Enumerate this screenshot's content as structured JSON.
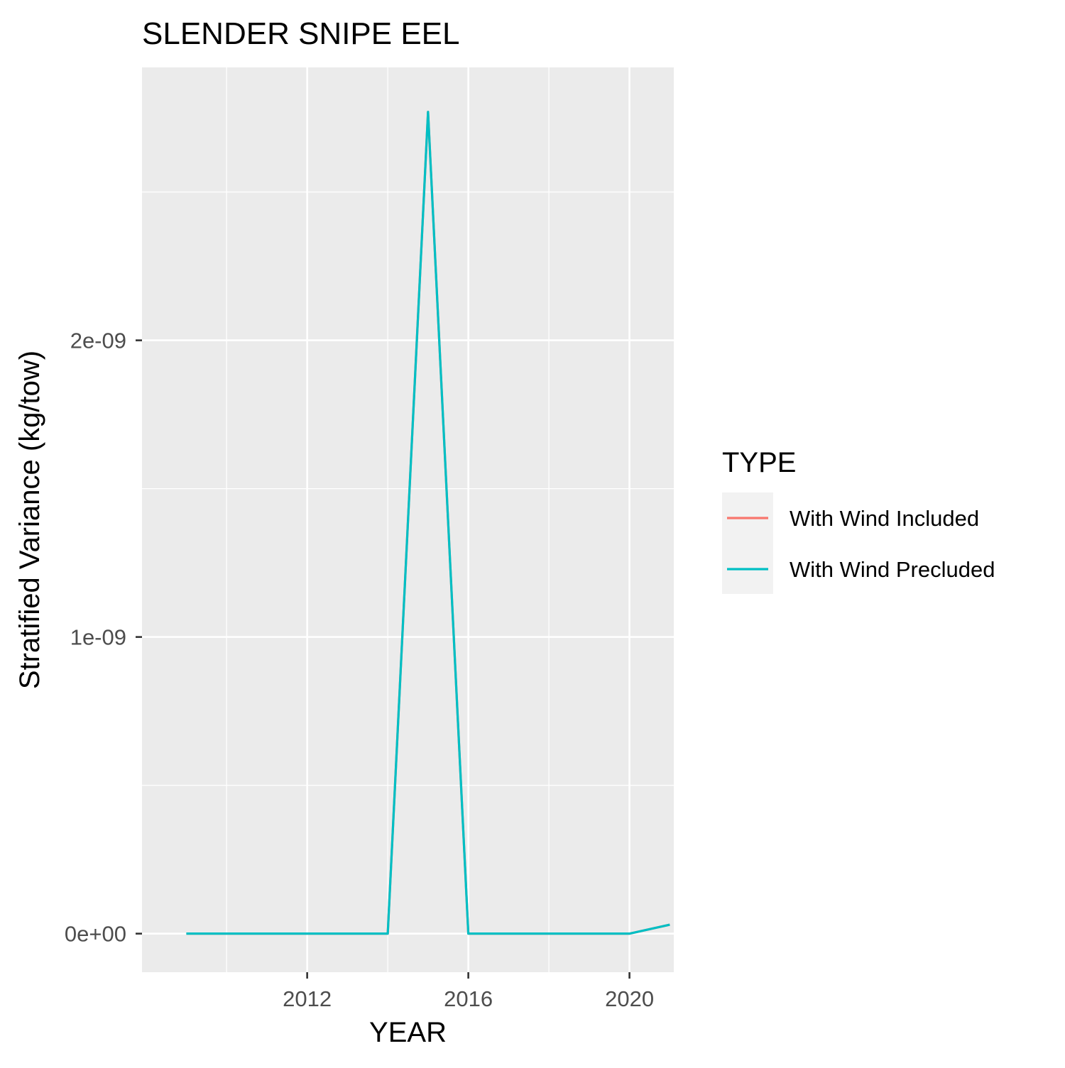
{
  "chart_data": {
    "type": "line",
    "title": "SLENDER SNIPE EEL",
    "xlabel": "YEAR",
    "ylabel": "Stratified Variance (kg/tow)",
    "x": [
      2009,
      2010,
      2011,
      2012,
      2013,
      2014,
      2015,
      2016,
      2017,
      2018,
      2019,
      2020,
      2021
    ],
    "xlim": [
      2007.9,
      2021.1
    ],
    "ylim": [
      -1.3e-10,
      2.92e-09
    ],
    "x_ticks": [
      2012,
      2016,
      2020
    ],
    "x_tick_labels": [
      "2012",
      "2016",
      "2020"
    ],
    "x_minor_ticks": [
      2010,
      2014,
      2018
    ],
    "y_ticks": [
      0,
      1e-09,
      2e-09
    ],
    "y_tick_labels": [
      "0e+00",
      "1e-09",
      "2e-09"
    ],
    "y_minor_ticks": [
      5e-10,
      1.5e-09,
      2.5e-09
    ],
    "grid": true,
    "legend": {
      "title": "TYPE",
      "position": "right"
    },
    "series": [
      {
        "name": "With Wind Included",
        "color": "#F8766D",
        "values": [
          0,
          0,
          0,
          0,
          0,
          0,
          2.77e-09,
          0,
          0,
          0,
          0,
          0,
          3e-11
        ]
      },
      {
        "name": "With Wind Precluded",
        "color": "#00BFC4",
        "values": [
          0,
          0,
          0,
          0,
          0,
          0,
          2.77e-09,
          0,
          0,
          0,
          0,
          0,
          3e-11
        ]
      }
    ],
    "colors": {
      "panel_background": "#EBEBEB",
      "grid_major": "#FFFFFF",
      "legend_key_background": "#F2F2F2",
      "axis_text": "#4D4D4D",
      "axis_ticks": "#333333"
    }
  }
}
